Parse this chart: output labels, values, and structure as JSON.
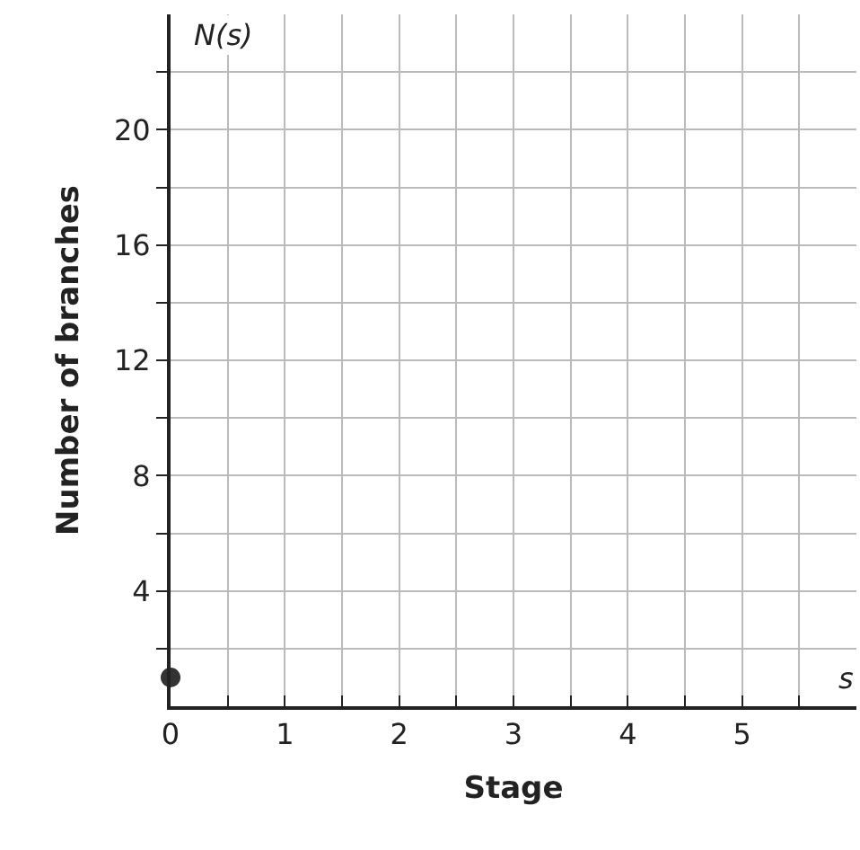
{
  "chart_data": {
    "type": "scatter",
    "xlabel": "Stage",
    "ylabel": "Number of branches",
    "annotations": [
      "N(s)",
      "s"
    ],
    "x": [
      0
    ],
    "series": [
      {
        "color": "#333333",
        "values": [
          1
        ]
      }
    ],
    "marker": "circle",
    "grid": true,
    "legend": false,
    "xlim": [
      0,
      6
    ],
    "ylim": [
      0,
      24
    ],
    "xticks": [
      {
        "value": 0,
        "label": "0"
      },
      {
        "value": 0.5,
        "label": null
      },
      1,
      {
        "value": 1.5,
        "label": null
      },
      2,
      {
        "value": 2.5,
        "label": null
      },
      3,
      {
        "value": 3.5,
        "label": null
      },
      4,
      {
        "value": 4.5,
        "label": null
      },
      5,
      {
        "value": 5.5,
        "label": null
      }
    ],
    "yticks": [
      {
        "value": 2,
        "label": null
      },
      4,
      {
        "value": 6,
        "label": null
      },
      8,
      {
        "value": 10,
        "label": null
      },
      12,
      {
        "value": 14,
        "label": null
      },
      16,
      {
        "value": 18,
        "label": null
      },
      20,
      {
        "value": 22,
        "label": null
      }
    ]
  }
}
